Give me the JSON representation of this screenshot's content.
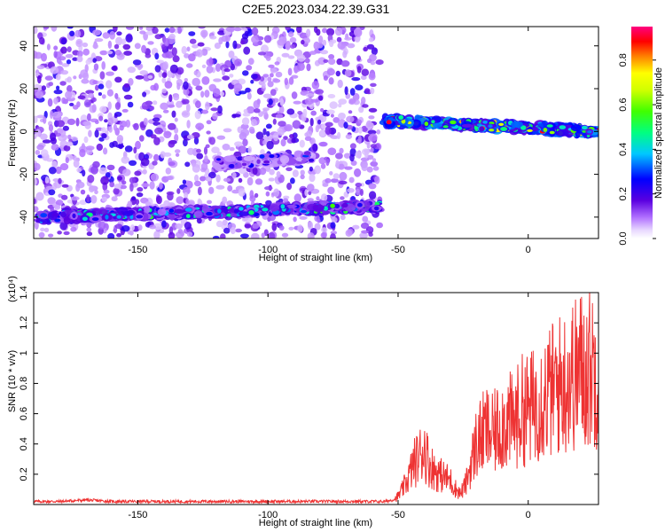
{
  "title": "C2E5.2023.034.22.39.G31",
  "chart_data": [
    {
      "type": "heatmap",
      "xlabel": "Height of straight line (km)",
      "ylabel": "Frequency (Hz)",
      "xlim": [
        -190,
        27
      ],
      "ylim": [
        -50,
        49
      ],
      "xticks": [
        -150,
        -100,
        -50,
        0
      ],
      "yticks": [
        -40,
        -20,
        0,
        20,
        40
      ],
      "colorbar": {
        "label": "Normalized spectral amplitude",
        "range": [
          0,
          0.95
        ],
        "ticks": [
          0.0,
          0.2,
          0.4,
          0.6,
          0.8
        ]
      },
      "colorscale": [
        "#ffffff",
        "#d8b8ff",
        "#8a2be2",
        "#5500d0",
        "#0000ff",
        "#00b0ff",
        "#00ffff",
        "#00ff40",
        "#a0ff00",
        "#ffff00",
        "#ff8000",
        "#ff0000",
        "#ff0080"
      ],
      "features": [
        {
          "x_start": -188,
          "x_end": -57,
          "y_start": -40,
          "y_end": -35,
          "amplitude": 0.35
        },
        {
          "x_start": -120,
          "x_end": -83,
          "y_start": -15,
          "y_end": -12,
          "amplitude": 0.2
        },
        {
          "x_start": -55,
          "x_end": 27,
          "y_start": 5,
          "y_end": 0,
          "amplitude": 0.6
        }
      ]
    },
    {
      "type": "line",
      "xlabel": "Height of straight line (km)",
      "ylabel": "SNR (10 * v/v)",
      "yscale_label": "(x10⁴)",
      "xlim": [
        -190,
        27
      ],
      "ylim": [
        0,
        1.4
      ],
      "xticks": [
        -150,
        -100,
        -50,
        0
      ],
      "yticks": [
        0.2,
        0.4,
        0.6,
        0.8,
        1.0,
        1.2,
        1.4
      ],
      "series": [
        {
          "color": "#ee3333",
          "x": [
            -190,
            -180,
            -170,
            -160,
            -150,
            -140,
            -130,
            -120,
            -110,
            -100,
            -90,
            -80,
            -70,
            -60,
            -55,
            -52,
            -50,
            -48,
            -46,
            -44,
            -42,
            -40,
            -38,
            -36,
            -34,
            -32,
            -30,
            -28,
            -26,
            -24,
            -22,
            -20,
            -18,
            -16,
            -14,
            -12,
            -10,
            -8,
            -6,
            -4,
            -2,
            0,
            2,
            4,
            6,
            8,
            10,
            12,
            14,
            16,
            18,
            20,
            22,
            24,
            26
          ],
          "values": [
            0.02,
            0.02,
            0.03,
            0.02,
            0.02,
            0.02,
            0.02,
            0.02,
            0.02,
            0.02,
            0.02,
            0.02,
            0.02,
            0.02,
            0.02,
            0.03,
            0.06,
            0.12,
            0.2,
            0.3,
            0.35,
            0.42,
            0.3,
            0.25,
            0.22,
            0.2,
            0.18,
            0.12,
            0.08,
            0.15,
            0.3,
            0.45,
            0.5,
            0.55,
            0.5,
            0.55,
            0.6,
            0.62,
            0.6,
            0.65,
            0.7,
            0.7,
            0.72,
            0.78,
            0.8,
            0.82,
            0.85,
            0.88,
            0.9,
            0.95,
            0.95,
            1.0,
            0.98,
            1.02,
            1.0
          ]
        }
      ]
    }
  ]
}
